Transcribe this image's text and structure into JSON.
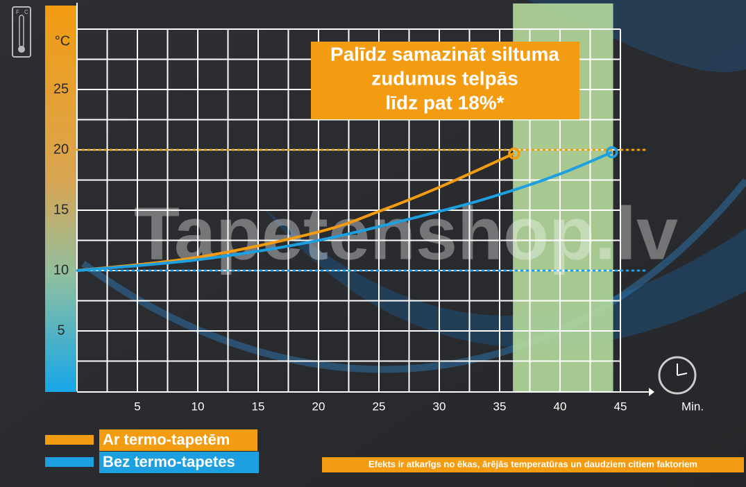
{
  "chart_data": {
    "type": "line",
    "title": [
      "Palīdz samazināt siltuma",
      "zudumus telpās",
      "līdz pat 18%*"
    ],
    "y_unit": "°C",
    "x_unit": "Min.",
    "watermark": "Tapetenshop.lv",
    "footnote": "Efekts ir atkarīgs no ēkas, ārējās temperatūras un daudziem citiem faktoriem",
    "icon_labels": [
      "F",
      "C"
    ],
    "xlim": [
      0,
      45
    ],
    "ylim": [
      0,
      30
    ],
    "xticks": [
      5,
      10,
      15,
      20,
      25,
      30,
      35,
      40,
      45
    ],
    "yticks": [
      5,
      10,
      15,
      20,
      25
    ],
    "grid": true,
    "highlight_x": [
      36.1,
      44.4
    ],
    "highlight_color": "#b5d99c",
    "ref_lines": [
      {
        "value": 20,
        "color": "#f39c12"
      },
      {
        "value": 10,
        "color": "#1ea0e0"
      }
    ],
    "series": [
      {
        "name": "Ar  termo-tapetēm",
        "color": "#f39c12",
        "x": [
          0,
          10,
          20,
          25,
          30,
          36.2
        ],
        "values": [
          10,
          11.1,
          13.2,
          14.9,
          16.9,
          19.7
        ]
      },
      {
        "name": "Bez termo-tapetes",
        "color": "#1ea0e0",
        "x": [
          0,
          10,
          20,
          30,
          35,
          40,
          44.3
        ],
        "values": [
          10,
          10.9,
          12.5,
          14.9,
          16.3,
          18.0,
          19.8
        ]
      }
    ]
  }
}
